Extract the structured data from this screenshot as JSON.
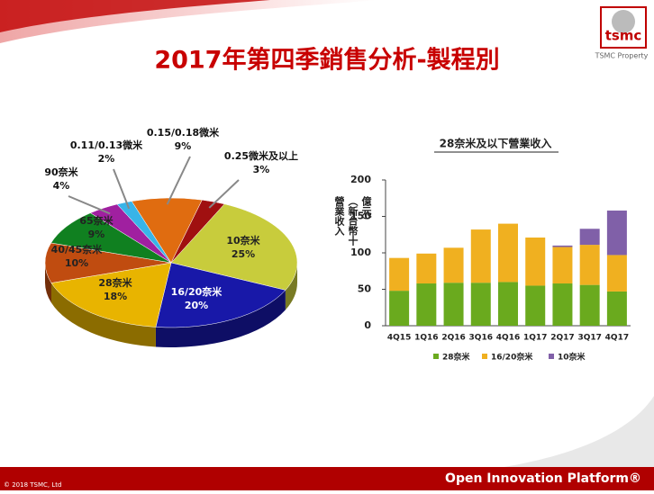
{
  "slide": {
    "title": "2017年第四季銷售分析-製程別",
    "logo": "tsmc",
    "property": "TSMC Property",
    "copyright": "© 2018 TSMC, Ltd",
    "footer": "Open Innovation Platform®"
  },
  "chart_data": [
    {
      "type": "pie",
      "categories": [
        "10奈米",
        "16/20奈米",
        "28奈米",
        "40/45奈米",
        "65奈米",
        "90奈米",
        "0.11/0.13微米",
        "0.15/0.18微米",
        "0.25微米及以上"
      ],
      "values": [
        25,
        20,
        18,
        10,
        9,
        4,
        2,
        9,
        3
      ],
      "value_labels": [
        "25%",
        "20%",
        "18%",
        "10%",
        "9%",
        "4%",
        "2%",
        "9%",
        "3%"
      ],
      "colors": [
        "#c8cc3c",
        "#1818a8",
        "#e8b400",
        "#c04c10",
        "#108020",
        "#a020a0",
        "#38b4e8",
        "#e06c10",
        "#a01010"
      ]
    },
    {
      "type": "bar",
      "stacked": true,
      "title": "28奈米及以下營業收入",
      "y_label": "營業收入（新台幣十億元）",
      "categories": [
        "4Q15",
        "1Q16",
        "2Q16",
        "3Q16",
        "4Q16",
        "1Q17",
        "2Q17",
        "3Q17",
        "4Q17"
      ],
      "series": [
        {
          "name": "28奈米",
          "color": "#6aaa1e",
          "values": [
            48,
            58,
            59,
            59,
            60,
            55,
            58,
            56,
            47
          ]
        },
        {
          "name": "16/20奈米",
          "color": "#f0b020",
          "values": [
            45,
            41,
            48,
            73,
            80,
            66,
            50,
            55,
            50
          ]
        },
        {
          "name": "10奈米",
          "color": "#8060a8",
          "values": [
            0,
            0,
            0,
            0,
            0,
            0,
            2,
            22,
            61
          ]
        }
      ],
      "ylim": [
        0,
        200
      ],
      "yticks": [
        0,
        50,
        100,
        150,
        200
      ],
      "legend": "bottom"
    }
  ]
}
